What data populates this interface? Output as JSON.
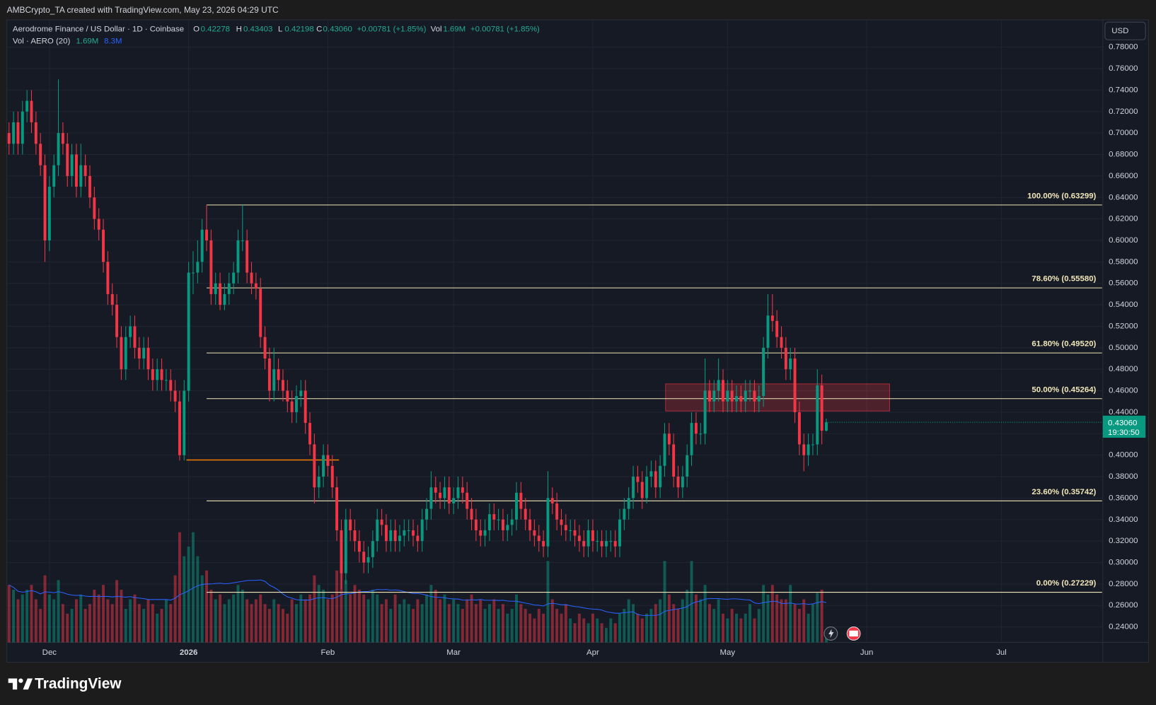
{
  "watermark": "AMBCrypto_TA created with TradingView.com, May 23, 2026 04:29 UTC",
  "logo": "TradingView",
  "currency_button": "USD",
  "chart_data": {
    "type": "candlestick",
    "title": "Aerodrome Finance / US Dollar · 1D · Coinbase",
    "ohlc_legend": {
      "o_label": "O",
      "open": 0.42278,
      "h_label": "H",
      "high": 0.43403,
      "l_label": "L",
      "low": 0.42198,
      "c_label": "C",
      "close": {
        "value": 0.4306,
        "label": "0.43060"
      },
      "change": "+0.00781 (+1.85%)",
      "vol_label": "Vol",
      "volume": {
        "value": 1.69,
        "label": "1.69M"
      },
      "vol_change": "+0.00781 (+1.85%)"
    },
    "volume_legend": {
      "title": "Vol · AERO (20)",
      "volume": {
        "value": 1.69,
        "label": "1.69M"
      },
      "ma": {
        "value": 8.3,
        "label": "8.3M"
      }
    },
    "price_tag": {
      "price": {
        "value": 0.4306,
        "label": "0.43060"
      },
      "countdown": "19:30:50"
    },
    "open": [
      0.7,
      0.69,
      0.71,
      0.69,
      0.72,
      0.73,
      0.71,
      0.69,
      0.67,
      0.6,
      0.65,
      0.67,
      0.7,
      0.69,
      0.66,
      0.68,
      0.65,
      0.67,
      0.66,
      0.64,
      0.62,
      0.61,
      0.58,
      0.55,
      0.54,
      0.51,
      0.48,
      0.51,
      0.52,
      0.5,
      0.49,
      0.5,
      0.48,
      0.47,
      0.48,
      0.47,
      0.47,
      0.46,
      0.45,
      0.4,
      0.46,
      0.57,
      0.57,
      0.58,
      0.61,
      0.6,
      0.55,
      0.56,
      0.54,
      0.55,
      0.56,
      0.57,
      0.6,
      0.6,
      0.57,
      0.56,
      0.555,
      0.51,
      0.49,
      0.46,
      0.48,
      0.47,
      0.46,
      0.45,
      0.44,
      0.455,
      0.46,
      0.43,
      0.41,
      0.37,
      0.38,
      0.4,
      0.39,
      0.37,
      0.33,
      0.29,
      0.34,
      0.33,
      0.32,
      0.31,
      0.3,
      0.305,
      0.32,
      0.34,
      0.335,
      0.32,
      0.33,
      0.32,
      0.325,
      0.33,
      0.33,
      0.325,
      0.32,
      0.34,
      0.35,
      0.37,
      0.365,
      0.36,
      0.37,
      0.355,
      0.36,
      0.37,
      0.365,
      0.35,
      0.34,
      0.33,
      0.325,
      0.33,
      0.345,
      0.34,
      0.34,
      0.33,
      0.335,
      0.34,
      0.365,
      0.35,
      0.34,
      0.33,
      0.325,
      0.32,
      0.315,
      0.36,
      0.355,
      0.34,
      0.335,
      0.33,
      0.33,
      0.325,
      0.32,
      0.315,
      0.33,
      0.32,
      0.32,
      0.315,
      0.32,
      0.32,
      0.315,
      0.34,
      0.35,
      0.36,
      0.38,
      0.375,
      0.36,
      0.38,
      0.385,
      0.37,
      0.39,
      0.42,
      0.41,
      0.38,
      0.37,
      0.38,
      0.4,
      0.43,
      0.42,
      0.42,
      0.46,
      0.45,
      0.46,
      0.47,
      0.45,
      0.46,
      0.45,
      0.455,
      0.45,
      0.46,
      0.46,
      0.45,
      0.455,
      0.5,
      0.53,
      0.525,
      0.51,
      0.5,
      0.48,
      0.49,
      0.44,
      0.41,
      0.4,
      0.41,
      0.41,
      0.465,
      0.42278
    ],
    "high": [
      0.71,
      0.72,
      0.72,
      0.73,
      0.74,
      0.74,
      0.72,
      0.7,
      0.68,
      0.66,
      0.68,
      0.75,
      0.71,
      0.7,
      0.69,
      0.69,
      0.69,
      0.68,
      0.67,
      0.65,
      0.63,
      0.62,
      0.59,
      0.56,
      0.55,
      0.52,
      0.52,
      0.53,
      0.53,
      0.51,
      0.51,
      0.51,
      0.49,
      0.49,
      0.49,
      0.48,
      0.48,
      0.47,
      0.46,
      0.47,
      0.58,
      0.59,
      0.6,
      0.62,
      0.633,
      0.61,
      0.57,
      0.57,
      0.56,
      0.57,
      0.58,
      0.61,
      0.633,
      0.61,
      0.58,
      0.57,
      0.565,
      0.52,
      0.5,
      0.5,
      0.49,
      0.48,
      0.47,
      0.46,
      0.465,
      0.47,
      0.47,
      0.44,
      0.42,
      0.39,
      0.41,
      0.41,
      0.4,
      0.38,
      0.34,
      0.35,
      0.35,
      0.34,
      0.33,
      0.32,
      0.315,
      0.33,
      0.35,
      0.35,
      0.345,
      0.34,
      0.34,
      0.335,
      0.34,
      0.34,
      0.34,
      0.335,
      0.35,
      0.36,
      0.385,
      0.38,
      0.375,
      0.38,
      0.38,
      0.37,
      0.38,
      0.38,
      0.375,
      0.36,
      0.35,
      0.34,
      0.34,
      0.355,
      0.355,
      0.35,
      0.35,
      0.345,
      0.35,
      0.375,
      0.375,
      0.36,
      0.35,
      0.34,
      0.335,
      0.33,
      0.385,
      0.37,
      0.365,
      0.35,
      0.345,
      0.34,
      0.34,
      0.335,
      0.33,
      0.34,
      0.34,
      0.33,
      0.33,
      0.33,
      0.33,
      0.33,
      0.35,
      0.36,
      0.37,
      0.39,
      0.39,
      0.385,
      0.39,
      0.395,
      0.395,
      0.4,
      0.43,
      0.43,
      0.42,
      0.39,
      0.39,
      0.41,
      0.44,
      0.44,
      0.43,
      0.49,
      0.47,
      0.47,
      0.49,
      0.48,
      0.47,
      0.47,
      0.465,
      0.465,
      0.47,
      0.47,
      0.47,
      0.465,
      0.51,
      0.55,
      0.55,
      0.535,
      0.52,
      0.51,
      0.5,
      0.5,
      0.45,
      0.42,
      0.42,
      0.42,
      0.48,
      0.475,
      0.43403
    ],
    "low": [
      0.68,
      0.68,
      0.68,
      0.68,
      0.71,
      0.7,
      0.68,
      0.66,
      0.58,
      0.59,
      0.64,
      0.66,
      0.68,
      0.65,
      0.65,
      0.64,
      0.64,
      0.65,
      0.63,
      0.61,
      0.6,
      0.57,
      0.54,
      0.53,
      0.5,
      0.47,
      0.47,
      0.5,
      0.49,
      0.48,
      0.48,
      0.47,
      0.46,
      0.46,
      0.46,
      0.46,
      0.45,
      0.44,
      0.395,
      0.395,
      0.45,
      0.55,
      0.56,
      0.57,
      0.59,
      0.54,
      0.54,
      0.535,
      0.535,
      0.54,
      0.55,
      0.56,
      0.59,
      0.56,
      0.55,
      0.545,
      0.5,
      0.48,
      0.45,
      0.45,
      0.46,
      0.45,
      0.44,
      0.43,
      0.43,
      0.445,
      0.42,
      0.4,
      0.355,
      0.36,
      0.37,
      0.38,
      0.36,
      0.32,
      0.275,
      0.28,
      0.32,
      0.31,
      0.3,
      0.29,
      0.29,
      0.295,
      0.31,
      0.325,
      0.31,
      0.31,
      0.31,
      0.31,
      0.315,
      0.32,
      0.315,
      0.31,
      0.31,
      0.33,
      0.34,
      0.355,
      0.35,
      0.35,
      0.345,
      0.345,
      0.35,
      0.355,
      0.34,
      0.33,
      0.32,
      0.315,
      0.315,
      0.32,
      0.33,
      0.33,
      0.32,
      0.32,
      0.325,
      0.33,
      0.34,
      0.33,
      0.32,
      0.315,
      0.31,
      0.305,
      0.305,
      0.345,
      0.33,
      0.325,
      0.32,
      0.32,
      0.315,
      0.31,
      0.305,
      0.305,
      0.31,
      0.31,
      0.305,
      0.305,
      0.31,
      0.305,
      0.305,
      0.33,
      0.34,
      0.35,
      0.365,
      0.35,
      0.355,
      0.37,
      0.36,
      0.36,
      0.38,
      0.4,
      0.37,
      0.36,
      0.36,
      0.37,
      0.39,
      0.41,
      0.41,
      0.41,
      0.44,
      0.44,
      0.45,
      0.44,
      0.44,
      0.44,
      0.44,
      0.44,
      0.44,
      0.45,
      0.44,
      0.44,
      0.445,
      0.49,
      0.515,
      0.5,
      0.49,
      0.47,
      0.47,
      0.43,
      0.4,
      0.385,
      0.39,
      0.4,
      0.4,
      0.41,
      0.42198
    ],
    "close": [
      0.69,
      0.71,
      0.69,
      0.72,
      0.73,
      0.71,
      0.69,
      0.67,
      0.6,
      0.65,
      0.67,
      0.7,
      0.69,
      0.66,
      0.68,
      0.65,
      0.67,
      0.66,
      0.64,
      0.62,
      0.61,
      0.58,
      0.55,
      0.54,
      0.51,
      0.48,
      0.51,
      0.52,
      0.5,
      0.49,
      0.5,
      0.48,
      0.47,
      0.48,
      0.47,
      0.47,
      0.46,
      0.45,
      0.4,
      0.46,
      0.57,
      0.57,
      0.58,
      0.61,
      0.6,
      0.55,
      0.56,
      0.54,
      0.55,
      0.56,
      0.57,
      0.6,
      0.6,
      0.57,
      0.56,
      0.555,
      0.51,
      0.49,
      0.46,
      0.48,
      0.47,
      0.46,
      0.45,
      0.44,
      0.455,
      0.46,
      0.43,
      0.41,
      0.37,
      0.38,
      0.4,
      0.39,
      0.37,
      0.33,
      0.29,
      0.34,
      0.33,
      0.32,
      0.31,
      0.3,
      0.305,
      0.32,
      0.34,
      0.335,
      0.32,
      0.33,
      0.32,
      0.325,
      0.33,
      0.33,
      0.325,
      0.32,
      0.34,
      0.35,
      0.37,
      0.365,
      0.36,
      0.37,
      0.355,
      0.36,
      0.37,
      0.365,
      0.35,
      0.34,
      0.33,
      0.325,
      0.33,
      0.345,
      0.34,
      0.34,
      0.33,
      0.335,
      0.34,
      0.365,
      0.35,
      0.34,
      0.33,
      0.325,
      0.32,
      0.315,
      0.36,
      0.355,
      0.34,
      0.335,
      0.33,
      0.33,
      0.325,
      0.32,
      0.315,
      0.33,
      0.32,
      0.32,
      0.315,
      0.32,
      0.32,
      0.315,
      0.34,
      0.35,
      0.36,
      0.38,
      0.375,
      0.36,
      0.38,
      0.385,
      0.37,
      0.39,
      0.42,
      0.41,
      0.38,
      0.37,
      0.38,
      0.4,
      0.43,
      0.42,
      0.42,
      0.46,
      0.45,
      0.46,
      0.47,
      0.45,
      0.46,
      0.45,
      0.455,
      0.45,
      0.46,
      0.46,
      0.45,
      0.455,
      0.5,
      0.53,
      0.525,
      0.51,
      0.5,
      0.48,
      0.49,
      0.44,
      0.41,
      0.4,
      0.41,
      0.41,
      0.465,
      0.42278,
      0.4306
    ],
    "volume": [
      12,
      11,
      9,
      10,
      11,
      12,
      9,
      7,
      14,
      10,
      9,
      13,
      8,
      6,
      7,
      9,
      10,
      7,
      8,
      11,
      10,
      12,
      9,
      8,
      13,
      11,
      7,
      9,
      10,
      8,
      7,
      9,
      8,
      6,
      7,
      9,
      8,
      14,
      23,
      18,
      20,
      23,
      18,
      14,
      15,
      11,
      9,
      10,
      8,
      9,
      10,
      12,
      11,
      9,
      8,
      9,
      10,
      8,
      7,
      9,
      8,
      7,
      6,
      9,
      8,
      10,
      9,
      10,
      14,
      12,
      11,
      9,
      10,
      15,
      18,
      13,
      10,
      12,
      11,
      10,
      9,
      11,
      10,
      8,
      9,
      7,
      10,
      8,
      9,
      8,
      7,
      9,
      8,
      10,
      12,
      11,
      9,
      10,
      8,
      9,
      8,
      7,
      9,
      10,
      8,
      9,
      7,
      8,
      9,
      7,
      8,
      6,
      7,
      10,
      8,
      7,
      6,
      5,
      7,
      6,
      17,
      9,
      7,
      6,
      8,
      5,
      4,
      6,
      5,
      4,
      6,
      5,
      4,
      3,
      5,
      4,
      6,
      7,
      9,
      8,
      6,
      5,
      6,
      7,
      8,
      9,
      17,
      10,
      8,
      7,
      9,
      11,
      17,
      10,
      9,
      12,
      8,
      7,
      9,
      6,
      5,
      7,
      6,
      5,
      6,
      8,
      5,
      7,
      12,
      10,
      12,
      10,
      9,
      9,
      12,
      8,
      7,
      9,
      6,
      8,
      10.3,
      11,
      1.69
    ],
    "up_color": "#089981",
    "down_color": "#f23645",
    "volume_ma_color": "#2962ff",
    "volume_ma_period": 20,
    "xlim": [
      -0.33,
      243.4
    ],
    "xticks": [
      {
        "value": 9,
        "label": "Dec"
      },
      {
        "value": 40,
        "label": "2026"
      },
      {
        "value": 71,
        "label": "Feb"
      },
      {
        "value": 99,
        "label": "Mar"
      },
      {
        "value": 130,
        "label": "Apr"
      },
      {
        "value": 160,
        "label": "May"
      },
      {
        "value": 191,
        "label": "Jun"
      },
      {
        "value": 221,
        "label": "Jul"
      }
    ],
    "ylim": [
      0.2256,
      0.8047
    ],
    "yticks": [
      {
        "value": 0.24,
        "label": "0.24000"
      },
      {
        "value": 0.26,
        "label": "0.26000"
      },
      {
        "value": 0.28,
        "label": "0.28000"
      },
      {
        "value": 0.3,
        "label": "0.30000"
      },
      {
        "value": 0.32,
        "label": "0.32000"
      },
      {
        "value": 0.34,
        "label": "0.34000"
      },
      {
        "value": 0.36,
        "label": "0.36000"
      },
      {
        "value": 0.38,
        "label": "0.38000"
      },
      {
        "value": 0.4,
        "label": "0.40000"
      },
      {
        "value": 0.42,
        "label": "0.42000"
      },
      {
        "value": 0.44,
        "label": "0.44000"
      },
      {
        "value": 0.46,
        "label": "0.46000"
      },
      {
        "value": 0.48,
        "label": "0.48000"
      },
      {
        "value": 0.5,
        "label": "0.50000"
      },
      {
        "value": 0.52,
        "label": "0.52000"
      },
      {
        "value": 0.54,
        "label": "0.54000"
      },
      {
        "value": 0.56,
        "label": "0.56000"
      },
      {
        "value": 0.58,
        "label": "0.58000"
      },
      {
        "value": 0.6,
        "label": "0.60000"
      },
      {
        "value": 0.62,
        "label": "0.62000"
      },
      {
        "value": 0.64,
        "label": "0.64000"
      },
      {
        "value": 0.66,
        "label": "0.66000"
      },
      {
        "value": 0.68,
        "label": "0.68000"
      },
      {
        "value": 0.7,
        "label": "0.70000"
      },
      {
        "value": 0.72,
        "label": "0.72000"
      },
      {
        "value": 0.74,
        "label": "0.74000"
      },
      {
        "value": 0.76,
        "label": "0.76000"
      },
      {
        "value": 0.78,
        "label": "0.78000"
      }
    ],
    "vlim": [
      0,
      26
    ],
    "grid": true,
    "fib": {
      "from": 44,
      "color": "#f0e6b8",
      "levels": [
        {
          "value": 0.63299,
          "label": "100.00% (0.63299)"
        },
        {
          "value": 0.5558,
          "label": "78.60% (0.55580)"
        },
        {
          "value": 0.4952,
          "label": "61.80% (0.49520)"
        },
        {
          "value": 0.45264,
          "label": "50.00% (0.45264)"
        },
        {
          "value": 0.35742,
          "label": "23.60% (0.35742)"
        },
        {
          "value": 0.27229,
          "label": "0.00% (0.27229)"
        }
      ]
    },
    "support_line": {
      "value": 0.3955,
      "from": 39.5,
      "to": 73.5,
      "color": "#f57c00"
    },
    "zone": {
      "from": 146.2,
      "to": 196.1,
      "low": 0.4411,
      "high": 0.4664,
      "color": "#f23645"
    }
  }
}
